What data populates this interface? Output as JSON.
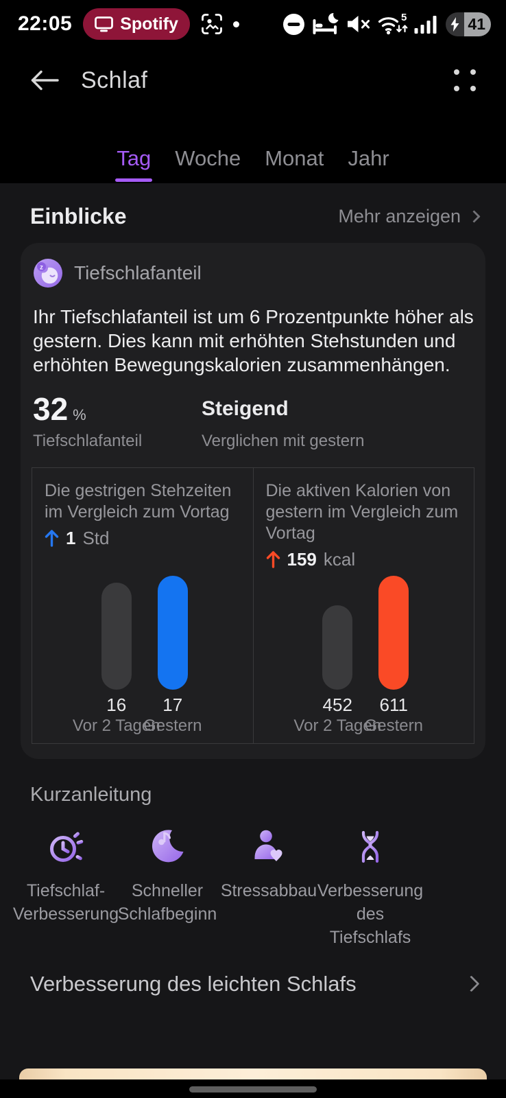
{
  "status_bar": {
    "time": "22:05",
    "spotify_label": "Spotify",
    "wifi_label": "5",
    "battery_percent": "41"
  },
  "header": {
    "title": "Schlaf"
  },
  "tabs": {
    "items": [
      {
        "label": "Tag",
        "active": true
      },
      {
        "label": "Woche",
        "active": false
      },
      {
        "label": "Monat",
        "active": false
      },
      {
        "label": "Jahr",
        "active": false
      }
    ]
  },
  "insights": {
    "section_title": "Einblicke",
    "more_label": "Mehr anzeigen",
    "card": {
      "icon": "sleep-moon-icon",
      "title": "Tiefschlafanteil",
      "description": "Ihr Tiefschlafanteil ist um 6 Prozentpunkte höher als gestern. Dies kann mit erhöhten Stehstunden und erhöhten Bewegungskalorien zusammenhängen.",
      "primary_value": "32",
      "primary_unit": "%",
      "primary_label": "Tiefschlafanteil",
      "trend_value": "Steigend",
      "trend_label": "Verglichen mit gestern"
    }
  },
  "chart_data": [
    {
      "type": "bar",
      "title": "Die gestrigen Stehzeiten im Vergleich zum Vortag",
      "delta": {
        "direction": "up",
        "value": "1",
        "unit": "Std"
      },
      "categories": [
        "Vor 2 Tagen",
        "Gestern"
      ],
      "values": [
        16,
        17
      ],
      "unit": "Std",
      "ylim": [
        0,
        17
      ],
      "bar_colors": [
        "#3a3a3c",
        "#1474f1"
      ],
      "accent": "#2577f0",
      "legend": "none",
      "grid": false
    },
    {
      "type": "bar",
      "title": "Die aktiven Kalorien von gestern im Vergleich zum Vortag",
      "delta": {
        "direction": "up",
        "value": "159",
        "unit": "kcal"
      },
      "categories": [
        "Vor 2 Tagen",
        "Gestern"
      ],
      "values": [
        452,
        611
      ],
      "unit": "kcal",
      "ylim": [
        0,
        611
      ],
      "bar_colors": [
        "#3a3a3c",
        "#fa4a26"
      ],
      "accent": "#fa4a26",
      "legend": "none",
      "grid": false
    }
  ],
  "quick_guide": {
    "title": "Kurzanleitung",
    "items": [
      {
        "icon": "timer-icon",
        "label": "Tiefschlaf-Verbesserung"
      },
      {
        "icon": "moon-music-icon",
        "label": "Schneller Schlafbeginn"
      },
      {
        "icon": "person-heart-icon",
        "label": "Stressabbau"
      },
      {
        "icon": "hourglass-icon",
        "label": "Verbesserung des Tiefschlafs"
      }
    ]
  },
  "more_link": {
    "label": "Verbesserung des leichten Schlafs"
  },
  "colors": {
    "accent_purple": "#a55bf5",
    "bar_blue": "#1474f1",
    "bar_orange": "#fa4a26",
    "bar_gray": "#3a3a3c",
    "spotify_red": "#8e1538",
    "sheet_cream": "#fdeed8",
    "card_bg": "#1f1f21",
    "page_bg": "#161618"
  }
}
